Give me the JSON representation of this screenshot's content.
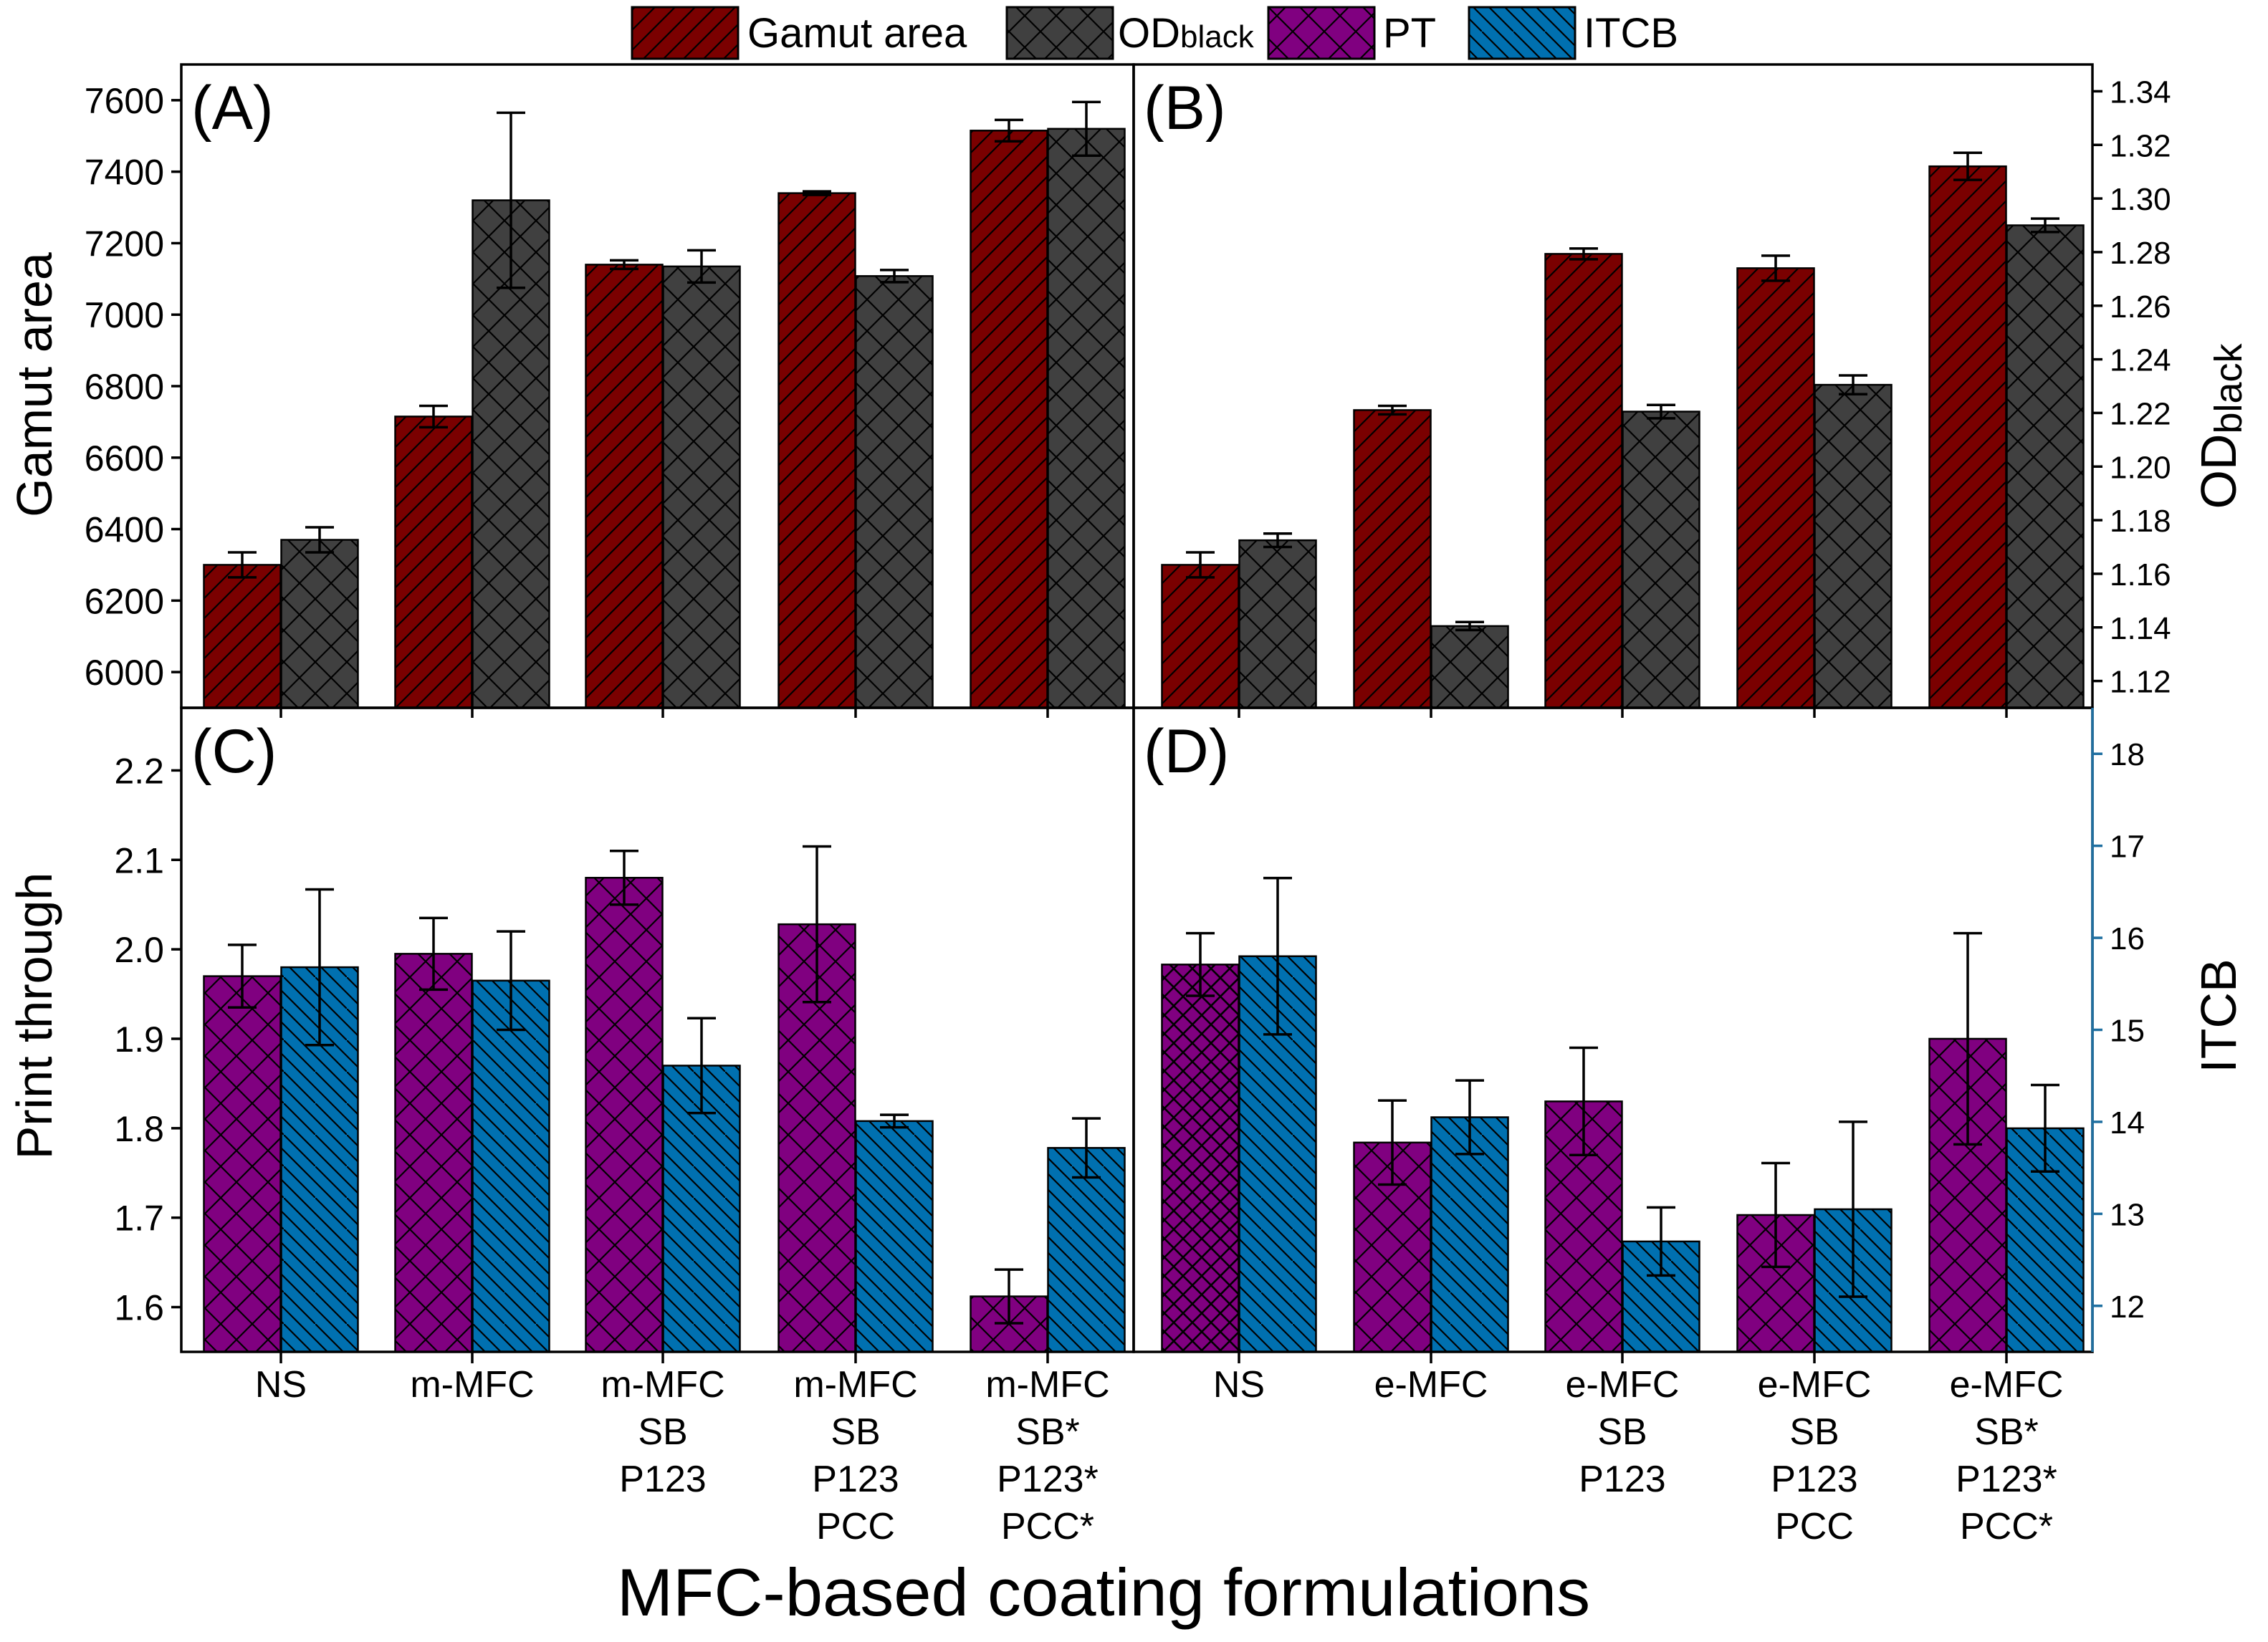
{
  "figure": {
    "xlabel": "MFC-based coating formulations"
  },
  "legend": [
    {
      "label": "Gamut area",
      "sub": "",
      "key": "gamut"
    },
    {
      "label": "OD",
      "sub": "black",
      "key": "od"
    },
    {
      "label": "PT",
      "sub": "",
      "key": "pt"
    },
    {
      "label": "ITCB",
      "sub": "",
      "key": "itcb"
    }
  ],
  "colors": {
    "gamut": "#7a0000",
    "od": "#404040",
    "pt": "#800080",
    "itcb": "#0070b0"
  },
  "chart_data": [
    {
      "panel": "A",
      "tag": "(A)",
      "type": "bar",
      "categories": [
        [
          "NS"
        ],
        [
          "m-MFC"
        ],
        [
          "m-MFC",
          "SB",
          "P123"
        ],
        [
          "m-MFC",
          "SB",
          "P123",
          "PCC"
        ],
        [
          "m-MFC",
          "SB*",
          "P123*",
          "PCC*"
        ]
      ],
      "ylabel": "Gamut area",
      "ylim": [
        5900,
        7700
      ],
      "yticks": [
        6000,
        6200,
        6400,
        6600,
        6800,
        7000,
        7200,
        7400,
        7600
      ],
      "y2label": "OD",
      "y2label_sub": "black",
      "y2lim": [
        1.11,
        1.35
      ],
      "series": [
        {
          "name": "Gamut area",
          "key": "gamut",
          "axis": "left",
          "values": [
            6300,
            6715,
            7140,
            7340,
            7515
          ],
          "errors": [
            35,
            30,
            12,
            5,
            30
          ]
        },
        {
          "name": "OD black",
          "key": "od",
          "axis": "left",
          "values": [
            6370,
            7320,
            7135,
            7108,
            7520
          ],
          "errors": [
            35,
            245,
            45,
            17,
            75
          ]
        }
      ]
    },
    {
      "panel": "B",
      "tag": "(B)",
      "type": "bar",
      "categories": [
        [
          "NS"
        ],
        [
          "e-MFC"
        ],
        [
          "e-MFC",
          "SB",
          "P123"
        ],
        [
          "e-MFC",
          "SB",
          "P123",
          "PCC"
        ],
        [
          "e-MFC",
          "SB*",
          "P123*",
          "PCC*"
        ]
      ],
      "ylabel": "Gamut area",
      "ylim": [
        5900,
        7700
      ],
      "y2label": "OD",
      "y2label_sub": "black",
      "y2lim": [
        1.11,
        1.35
      ],
      "y2ticks": [
        1.12,
        1.14,
        1.16,
        1.18,
        1.2,
        1.22,
        1.24,
        1.26,
        1.28,
        1.3,
        1.32,
        1.34
      ],
      "series": [
        {
          "name": "Gamut area",
          "key": "gamut",
          "axis": "left",
          "values": [
            6300,
            6733,
            7170,
            7130,
            7415
          ],
          "errors": [
            35,
            12,
            15,
            35,
            38
          ]
        },
        {
          "name": "OD black",
          "key": "od",
          "axis": "right",
          "values": [
            1.1725,
            1.1405,
            1.2205,
            1.2305,
            1.29
          ],
          "errors": [
            0.0025,
            0.0015,
            0.0025,
            0.0035,
            0.0025
          ]
        }
      ]
    },
    {
      "panel": "C",
      "tag": "(C)",
      "type": "bar",
      "categories": [
        [
          "NS"
        ],
        [
          "m-MFC"
        ],
        [
          "m-MFC",
          "SB",
          "P123"
        ],
        [
          "m-MFC",
          "SB",
          "P123",
          "PCC"
        ],
        [
          "m-MFC",
          "SB*",
          "P123*",
          "PCC*"
        ]
      ],
      "ylabel": "Print through",
      "ylim": [
        1.55,
        2.27
      ],
      "yticks": [
        1.6,
        1.7,
        1.8,
        1.9,
        2.0,
        2.1,
        2.2
      ],
      "y2label": "ITCB",
      "y2lim": [
        11.5,
        18.5
      ],
      "series": [
        {
          "name": "PT",
          "key": "pt",
          "axis": "left",
          "values": [
            1.97,
            1.995,
            2.08,
            2.028,
            1.612
          ],
          "errors": [
            0.035,
            0.04,
            0.03,
            0.087,
            0.03
          ]
        },
        {
          "name": "ITCB",
          "key": "itcb",
          "axis": "left",
          "values": [
            1.98,
            1.965,
            1.87,
            1.808,
            1.778
          ],
          "errors": [
            0.087,
            0.055,
            0.053,
            0.007,
            0.033
          ]
        }
      ]
    },
    {
      "panel": "D",
      "tag": "(D)",
      "type": "bar",
      "categories": [
        [
          "NS"
        ],
        [
          "e-MFC"
        ],
        [
          "e-MFC",
          "SB",
          "P123"
        ],
        [
          "e-MFC",
          "SB",
          "P123",
          "PCC"
        ],
        [
          "e-MFC",
          "SB*",
          "P123*",
          "PCC*"
        ]
      ],
      "ylabel": "Print through",
      "ylim": [
        1.55,
        2.27
      ],
      "y2label": "ITCB",
      "y2lim": [
        11.5,
        18.5
      ],
      "y2ticks": [
        12,
        13,
        14,
        15,
        16,
        17,
        18
      ],
      "series": [
        {
          "name": "PT",
          "key": "pt",
          "axis": "left",
          "values": [
            1.983,
            1.784,
            1.83,
            1.703,
            1.9
          ],
          "errors": [
            0.035,
            0.047,
            0.06,
            0.058,
            0.118
          ]
        },
        {
          "name": "ITCB",
          "key": "itcb",
          "axis": "right",
          "values": [
            15.8,
            14.05,
            12.7,
            13.05,
            13.93
          ],
          "errors": [
            0.85,
            0.4,
            0.37,
            0.95,
            0.47
          ]
        }
      ]
    }
  ]
}
